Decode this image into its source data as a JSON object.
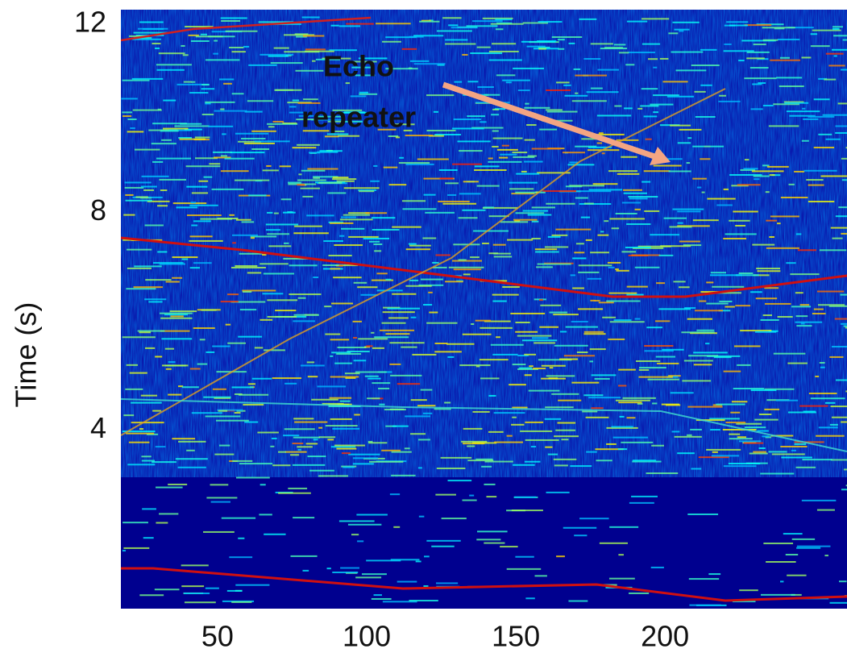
{
  "chart_data": {
    "type": "heatmap",
    "ylabel": "Time (s)",
    "xlim": [
      17.6,
      261
    ],
    "xticks": [
      50,
      100,
      150,
      200
    ],
    "ylim": [
      0.72,
      11.72
    ],
    "yticks": [
      4,
      8,
      12
    ],
    "annotation": {
      "lines": [
        "Echo",
        "repeater"
      ],
      "color": "#f5a623",
      "arrow_color": "#f4a582"
    }
  }
}
